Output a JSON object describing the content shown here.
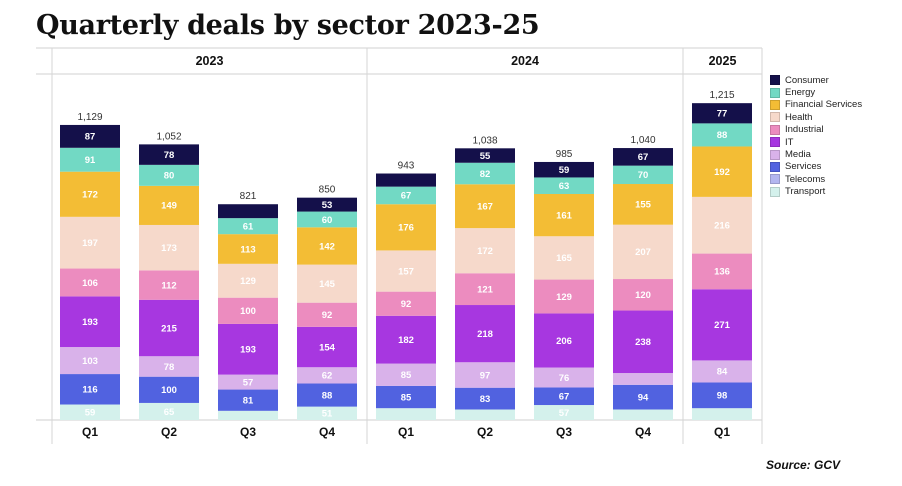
{
  "title": "Quarterly deals by sector 2023-25",
  "source": "Source: GCV",
  "chart_data": {
    "type": "bar",
    "stacked": true,
    "years": [
      "2023",
      "2024",
      "2025"
    ],
    "categories": [
      "Q1",
      "Q2",
      "Q3",
      "Q4",
      "Q1",
      "Q2",
      "Q3",
      "Q4",
      "Q1"
    ],
    "category_years": [
      "2023",
      "2023",
      "2023",
      "2023",
      "2024",
      "2024",
      "2024",
      "2024",
      "2025"
    ],
    "totals": [
      1129,
      1052,
      821,
      850,
      943,
      1038,
      985,
      1040,
      1215
    ],
    "totals_display": [
      "1,129",
      "1,052",
      "821",
      "850",
      "943",
      "1,038",
      "985",
      "1,040",
      "1,215"
    ],
    "legend_position": "right",
    "series": [
      {
        "name": "Consumer",
        "color": "#14104a",
        "values": [
          87,
          78,
          53,
          53,
          50,
          55,
          59,
          67,
          77
        ],
        "labels": [
          "87",
          "78",
          "",
          "53",
          "",
          "55",
          "59",
          "67",
          "77"
        ]
      },
      {
        "name": "Energy",
        "color": "#72d9c4",
        "values": [
          91,
          80,
          61,
          60,
          67,
          82,
          63,
          70,
          88
        ],
        "labels": [
          "91",
          "80",
          "61",
          "60",
          "67",
          "82",
          "63",
          "70",
          "88"
        ]
      },
      {
        "name": "Financial Services",
        "color": "#f3bd35",
        "values": [
          172,
          149,
          113,
          142,
          176,
          167,
          161,
          155,
          192
        ],
        "labels": [
          "172",
          "149",
          "113",
          "142",
          "176",
          "167",
          "161",
          "155",
          "192"
        ]
      },
      {
        "name": "Health",
        "color": "#f6d9cb",
        "values": [
          197,
          173,
          129,
          145,
          157,
          172,
          165,
          207,
          216
        ],
        "labels": [
          "197",
          "173",
          "129",
          "145",
          "157",
          "172",
          "165",
          "207",
          "216"
        ]
      },
      {
        "name": "Industrial",
        "color": "#ec8cbf",
        "values": [
          106,
          112,
          100,
          92,
          92,
          121,
          129,
          120,
          136
        ],
        "labels": [
          "106",
          "112",
          "100",
          "92",
          "92",
          "121",
          "129",
          "120",
          "136"
        ]
      },
      {
        "name": "IT",
        "color": "#a737e0",
        "values": [
          193,
          215,
          193,
          154,
          182,
          218,
          206,
          238,
          271
        ],
        "labels": [
          "193",
          "215",
          "193",
          "154",
          "182",
          "218",
          "206",
          "238",
          "271"
        ]
      },
      {
        "name": "Media",
        "color": "#d9b2ea",
        "values": [
          103,
          78,
          57,
          62,
          85,
          97,
          76,
          45,
          84
        ],
        "labels": [
          "103",
          "78",
          "57",
          "62",
          "85",
          "97",
          "76",
          "",
          "84"
        ]
      },
      {
        "name": "Services",
        "color": "#5162e0",
        "values": [
          116,
          100,
          81,
          88,
          85,
          83,
          67,
          94,
          98
        ],
        "labels": [
          "116",
          "100",
          "81",
          "88",
          "85",
          "83",
          "67",
          "94",
          "98"
        ]
      },
      {
        "name": "Telecoms",
        "color": "#b3b6ef",
        "values": [
          0,
          0,
          0,
          0,
          0,
          0,
          0,
          0,
          0
        ],
        "labels": [
          "",
          "",
          "",
          "",
          "",
          "",
          "",
          "",
          ""
        ]
      },
      {
        "name": "Transport",
        "color": "#d4f1ec",
        "values": [
          59,
          65,
          35,
          51,
          45,
          40,
          57,
          40,
          45
        ],
        "labels": [
          "59",
          "65",
          "",
          "51",
          "",
          "",
          "57",
          "",
          ""
        ]
      }
    ],
    "legend_order": [
      "Consumer",
      "Energy",
      "Financial Services",
      "Health",
      "Industrial",
      "IT",
      "Media",
      "Services",
      "Telecoms",
      "Transport"
    ]
  }
}
